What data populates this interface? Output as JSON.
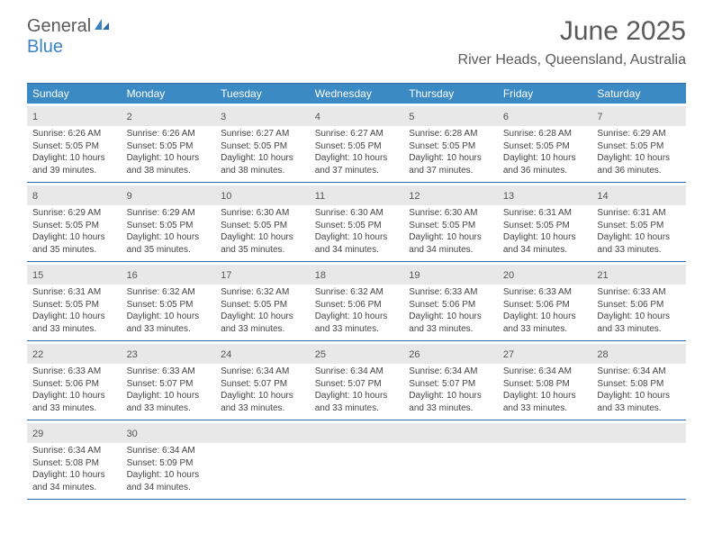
{
  "logo": {
    "text1": "General",
    "text2": "Blue"
  },
  "title": "June 2025",
  "location": "River Heads, Queensland, Australia",
  "colors": {
    "header_bg": "#3b8ac4",
    "border": "#2a6aa8",
    "daynum_bg": "#e8e8e8",
    "text": "#444444",
    "title_text": "#5a5a5a",
    "logo_blue": "#3b82c4"
  },
  "daynames": [
    "Sunday",
    "Monday",
    "Tuesday",
    "Wednesday",
    "Thursday",
    "Friday",
    "Saturday"
  ],
  "weeks": [
    [
      {
        "n": "1",
        "sr": "Sunrise: 6:26 AM",
        "ss": "Sunset: 5:05 PM",
        "d1": "Daylight: 10 hours",
        "d2": "and 39 minutes."
      },
      {
        "n": "2",
        "sr": "Sunrise: 6:26 AM",
        "ss": "Sunset: 5:05 PM",
        "d1": "Daylight: 10 hours",
        "d2": "and 38 minutes."
      },
      {
        "n": "3",
        "sr": "Sunrise: 6:27 AM",
        "ss": "Sunset: 5:05 PM",
        "d1": "Daylight: 10 hours",
        "d2": "and 38 minutes."
      },
      {
        "n": "4",
        "sr": "Sunrise: 6:27 AM",
        "ss": "Sunset: 5:05 PM",
        "d1": "Daylight: 10 hours",
        "d2": "and 37 minutes."
      },
      {
        "n": "5",
        "sr": "Sunrise: 6:28 AM",
        "ss": "Sunset: 5:05 PM",
        "d1": "Daylight: 10 hours",
        "d2": "and 37 minutes."
      },
      {
        "n": "6",
        "sr": "Sunrise: 6:28 AM",
        "ss": "Sunset: 5:05 PM",
        "d1": "Daylight: 10 hours",
        "d2": "and 36 minutes."
      },
      {
        "n": "7",
        "sr": "Sunrise: 6:29 AM",
        "ss": "Sunset: 5:05 PM",
        "d1": "Daylight: 10 hours",
        "d2": "and 36 minutes."
      }
    ],
    [
      {
        "n": "8",
        "sr": "Sunrise: 6:29 AM",
        "ss": "Sunset: 5:05 PM",
        "d1": "Daylight: 10 hours",
        "d2": "and 35 minutes."
      },
      {
        "n": "9",
        "sr": "Sunrise: 6:29 AM",
        "ss": "Sunset: 5:05 PM",
        "d1": "Daylight: 10 hours",
        "d2": "and 35 minutes."
      },
      {
        "n": "10",
        "sr": "Sunrise: 6:30 AM",
        "ss": "Sunset: 5:05 PM",
        "d1": "Daylight: 10 hours",
        "d2": "and 35 minutes."
      },
      {
        "n": "11",
        "sr": "Sunrise: 6:30 AM",
        "ss": "Sunset: 5:05 PM",
        "d1": "Daylight: 10 hours",
        "d2": "and 34 minutes."
      },
      {
        "n": "12",
        "sr": "Sunrise: 6:30 AM",
        "ss": "Sunset: 5:05 PM",
        "d1": "Daylight: 10 hours",
        "d2": "and 34 minutes."
      },
      {
        "n": "13",
        "sr": "Sunrise: 6:31 AM",
        "ss": "Sunset: 5:05 PM",
        "d1": "Daylight: 10 hours",
        "d2": "and 34 minutes."
      },
      {
        "n": "14",
        "sr": "Sunrise: 6:31 AM",
        "ss": "Sunset: 5:05 PM",
        "d1": "Daylight: 10 hours",
        "d2": "and 33 minutes."
      }
    ],
    [
      {
        "n": "15",
        "sr": "Sunrise: 6:31 AM",
        "ss": "Sunset: 5:05 PM",
        "d1": "Daylight: 10 hours",
        "d2": "and 33 minutes."
      },
      {
        "n": "16",
        "sr": "Sunrise: 6:32 AM",
        "ss": "Sunset: 5:05 PM",
        "d1": "Daylight: 10 hours",
        "d2": "and 33 minutes."
      },
      {
        "n": "17",
        "sr": "Sunrise: 6:32 AM",
        "ss": "Sunset: 5:05 PM",
        "d1": "Daylight: 10 hours",
        "d2": "and 33 minutes."
      },
      {
        "n": "18",
        "sr": "Sunrise: 6:32 AM",
        "ss": "Sunset: 5:06 PM",
        "d1": "Daylight: 10 hours",
        "d2": "and 33 minutes."
      },
      {
        "n": "19",
        "sr": "Sunrise: 6:33 AM",
        "ss": "Sunset: 5:06 PM",
        "d1": "Daylight: 10 hours",
        "d2": "and 33 minutes."
      },
      {
        "n": "20",
        "sr": "Sunrise: 6:33 AM",
        "ss": "Sunset: 5:06 PM",
        "d1": "Daylight: 10 hours",
        "d2": "and 33 minutes."
      },
      {
        "n": "21",
        "sr": "Sunrise: 6:33 AM",
        "ss": "Sunset: 5:06 PM",
        "d1": "Daylight: 10 hours",
        "d2": "and 33 minutes."
      }
    ],
    [
      {
        "n": "22",
        "sr": "Sunrise: 6:33 AM",
        "ss": "Sunset: 5:06 PM",
        "d1": "Daylight: 10 hours",
        "d2": "and 33 minutes."
      },
      {
        "n": "23",
        "sr": "Sunrise: 6:33 AM",
        "ss": "Sunset: 5:07 PM",
        "d1": "Daylight: 10 hours",
        "d2": "and 33 minutes."
      },
      {
        "n": "24",
        "sr": "Sunrise: 6:34 AM",
        "ss": "Sunset: 5:07 PM",
        "d1": "Daylight: 10 hours",
        "d2": "and 33 minutes."
      },
      {
        "n": "25",
        "sr": "Sunrise: 6:34 AM",
        "ss": "Sunset: 5:07 PM",
        "d1": "Daylight: 10 hours",
        "d2": "and 33 minutes."
      },
      {
        "n": "26",
        "sr": "Sunrise: 6:34 AM",
        "ss": "Sunset: 5:07 PM",
        "d1": "Daylight: 10 hours",
        "d2": "and 33 minutes."
      },
      {
        "n": "27",
        "sr": "Sunrise: 6:34 AM",
        "ss": "Sunset: 5:08 PM",
        "d1": "Daylight: 10 hours",
        "d2": "and 33 minutes."
      },
      {
        "n": "28",
        "sr": "Sunrise: 6:34 AM",
        "ss": "Sunset: 5:08 PM",
        "d1": "Daylight: 10 hours",
        "d2": "and 33 minutes."
      }
    ],
    [
      {
        "n": "29",
        "sr": "Sunrise: 6:34 AM",
        "ss": "Sunset: 5:08 PM",
        "d1": "Daylight: 10 hours",
        "d2": "and 34 minutes."
      },
      {
        "n": "30",
        "sr": "Sunrise: 6:34 AM",
        "ss": "Sunset: 5:09 PM",
        "d1": "Daylight: 10 hours",
        "d2": "and 34 minutes."
      },
      {
        "n": "",
        "sr": "",
        "ss": "",
        "d1": "",
        "d2": ""
      },
      {
        "n": "",
        "sr": "",
        "ss": "",
        "d1": "",
        "d2": ""
      },
      {
        "n": "",
        "sr": "",
        "ss": "",
        "d1": "",
        "d2": ""
      },
      {
        "n": "",
        "sr": "",
        "ss": "",
        "d1": "",
        "d2": ""
      },
      {
        "n": "",
        "sr": "",
        "ss": "",
        "d1": "",
        "d2": ""
      }
    ]
  ]
}
